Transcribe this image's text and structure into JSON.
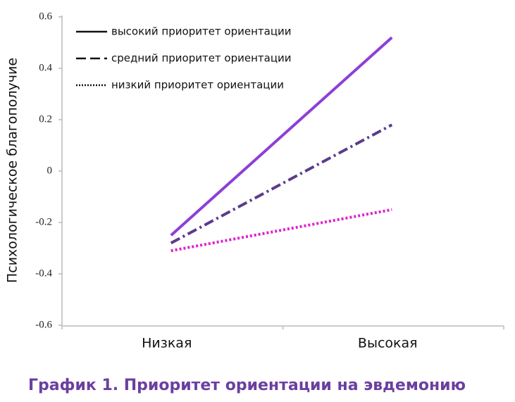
{
  "chart_data": {
    "type": "line",
    "title": "График 1. Приоритет ориентации на эвдемонию",
    "y_label": "Психологическое благополучие",
    "categories": [
      "Низкая",
      "Высокая"
    ],
    "series": [
      {
        "name": "высокий приоритет ориентации",
        "color": "#8e3fd6",
        "style": "solid",
        "values": [
          -0.25,
          0.52
        ]
      },
      {
        "name": "средний приоритет ориентации",
        "color": "#5b3b8c",
        "style": "dashdot",
        "values": [
          -0.28,
          0.18
        ]
      },
      {
        "name": "низкий приоритет ориентации",
        "color": "#e020d0",
        "style": "dotted",
        "values": [
          -0.31,
          -0.15
        ]
      }
    ],
    "ylim": [
      -0.6,
      0.6
    ],
    "yticks": [
      0.6,
      0.4,
      0.2,
      0,
      -0.2,
      -0.4,
      -0.6
    ],
    "legend": "upper-left"
  }
}
